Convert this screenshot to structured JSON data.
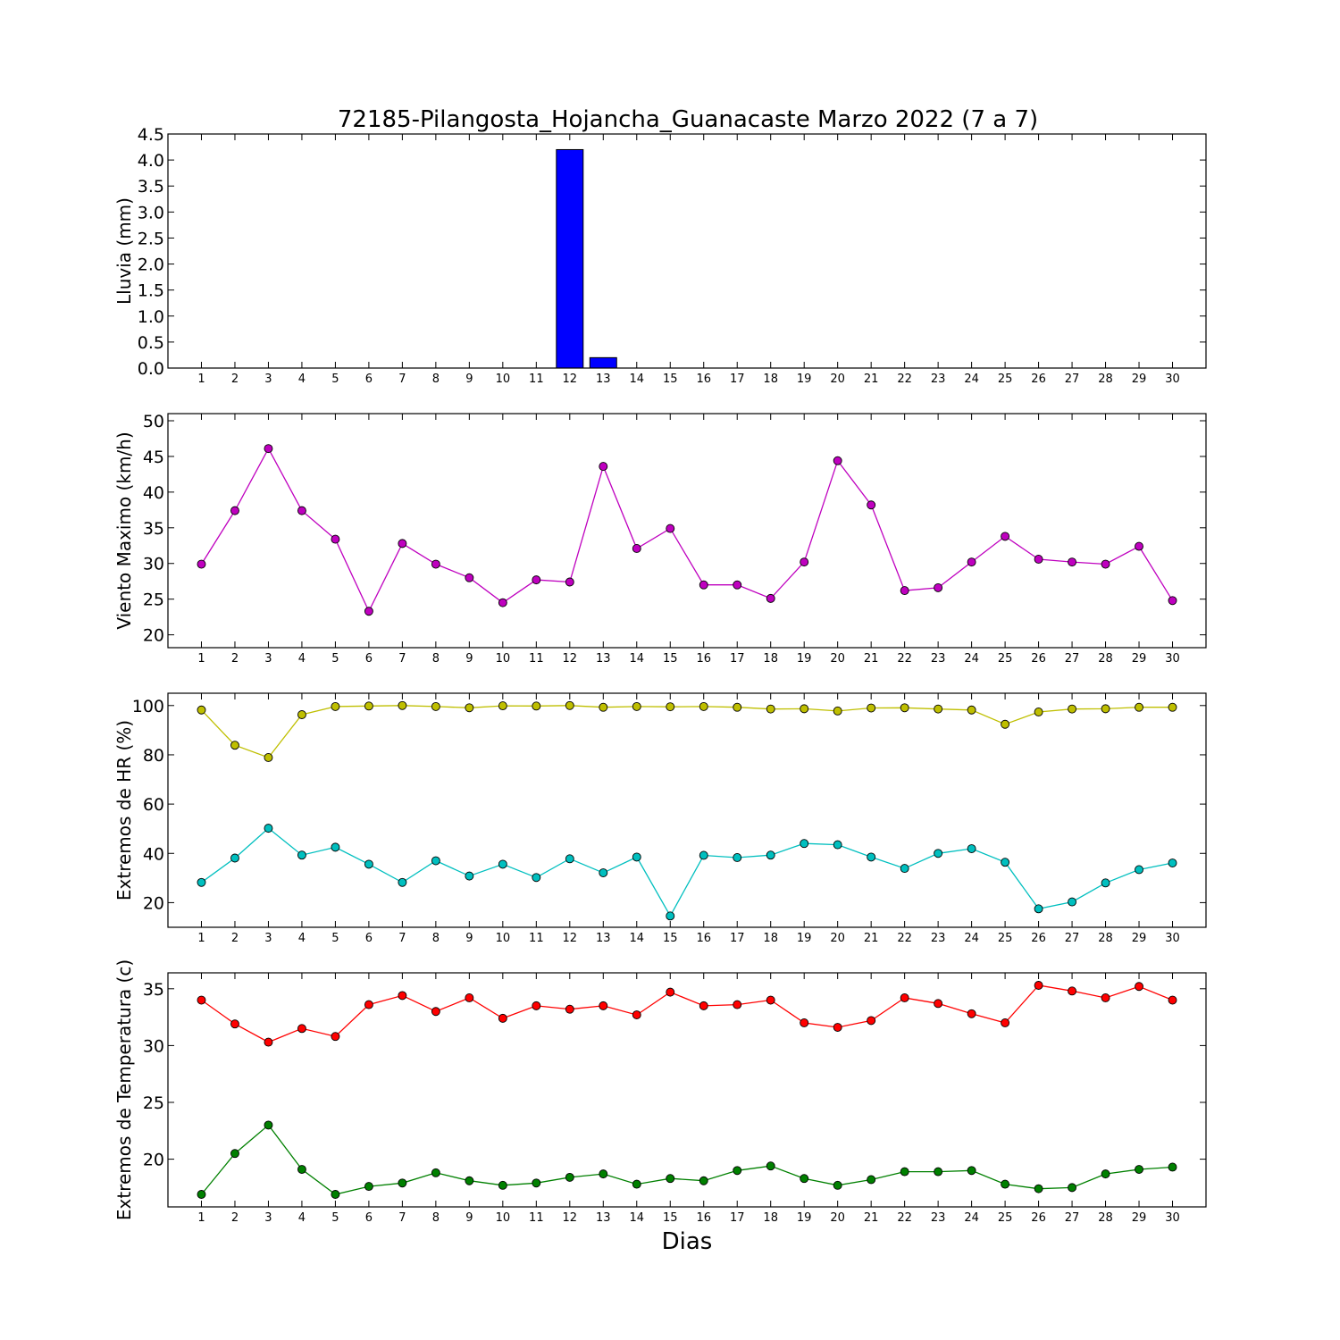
{
  "title": "72185-Pilangosta_Hojancha_Guanacaste Marzo 2022  (7 a 7)",
  "xlabel": "Dias",
  "colors": {
    "rain": "#0000ff",
    "wind": "#bf00bf",
    "hr_max": "#bfbf00",
    "hr_min": "#00bfbf",
    "temp_max": "#ff0000",
    "temp_min": "#008000"
  },
  "chart_data": [
    {
      "type": "bar",
      "ylabel": "Lluvia (mm)",
      "ylim": [
        0,
        4.5
      ],
      "yticks": [
        "0.0",
        "0.5",
        "1.0",
        "1.5",
        "2.0",
        "2.5",
        "3.0",
        "3.5",
        "4.0",
        "4.5"
      ],
      "categories": [
        1,
        2,
        3,
        4,
        5,
        6,
        7,
        8,
        9,
        10,
        11,
        12,
        13,
        14,
        15,
        16,
        17,
        18,
        19,
        20,
        21,
        22,
        23,
        24,
        25,
        26,
        27,
        28,
        29,
        30
      ],
      "series": [
        {
          "values": [
            0,
            0,
            0,
            0,
            0,
            0,
            0,
            0,
            0,
            0,
            0,
            4.2,
            0.2,
            0,
            0,
            0,
            0,
            0,
            0,
            0,
            0,
            0,
            0,
            0,
            0,
            0,
            0,
            0,
            0,
            0
          ]
        }
      ]
    },
    {
      "type": "line",
      "ylabel": "Viento Maximo (km/h)",
      "ylim": [
        18.2,
        51
      ],
      "yticks": [
        "20",
        "25",
        "30",
        "35",
        "40",
        "45",
        "50"
      ],
      "categories": [
        1,
        2,
        3,
        4,
        5,
        6,
        7,
        8,
        9,
        10,
        11,
        12,
        13,
        14,
        15,
        16,
        17,
        18,
        19,
        20,
        21,
        22,
        23,
        24,
        25,
        26,
        27,
        28,
        29,
        30
      ],
      "series": [
        {
          "values": [
            29.9,
            37.4,
            46.1,
            37.4,
            33.4,
            23.3,
            32.8,
            29.9,
            28.0,
            24.5,
            27.7,
            27.4,
            43.6,
            32.1,
            34.9,
            27.0,
            27.0,
            25.1,
            30.2,
            44.4,
            38.2,
            26.2,
            26.6,
            30.2,
            33.8,
            30.6,
            30.2,
            29.9,
            32.4,
            24.8
          ]
        }
      ]
    },
    {
      "type": "line",
      "ylabel": "Extremos de HR (%)",
      "ylim": [
        10,
        105
      ],
      "yticks": [
        "20",
        "40",
        "60",
        "80",
        "100"
      ],
      "categories": [
        1,
        2,
        3,
        4,
        5,
        6,
        7,
        8,
        9,
        10,
        11,
        12,
        13,
        14,
        15,
        16,
        17,
        18,
        19,
        20,
        21,
        22,
        23,
        24,
        25,
        26,
        27,
        28,
        29,
        30
      ],
      "series": [
        {
          "values": [
            98.2,
            83.9,
            78.9,
            96.3,
            99.6,
            99.8,
            100.0,
            99.6,
            99.1,
            99.9,
            99.8,
            100.0,
            99.3,
            99.6,
            99.5,
            99.6,
            99.3,
            98.6,
            98.7,
            97.8,
            99.0,
            99.1,
            98.6,
            98.2,
            92.4,
            97.4,
            98.6,
            98.7,
            99.3,
            99.3
          ]
        },
        {
          "values": [
            28.2,
            38.1,
            50.2,
            39.3,
            42.5,
            35.6,
            28.2,
            37.0,
            30.8,
            35.6,
            30.2,
            37.8,
            32.1,
            38.5,
            14.6,
            39.2,
            38.3,
            39.3,
            44.0,
            43.5,
            38.5,
            33.9,
            40.0,
            41.9,
            36.4,
            17.5,
            20.3,
            28.0,
            33.4,
            36.1
          ]
        }
      ]
    },
    {
      "type": "line",
      "ylabel": "Extremos de Temperatura (c)",
      "ylim": [
        15.8,
        36.4
      ],
      "yticks": [
        "20",
        "25",
        "30",
        "35"
      ],
      "categories": [
        1,
        2,
        3,
        4,
        5,
        6,
        7,
        8,
        9,
        10,
        11,
        12,
        13,
        14,
        15,
        16,
        17,
        18,
        19,
        20,
        21,
        22,
        23,
        24,
        25,
        26,
        27,
        28,
        29,
        30
      ],
      "series": [
        {
          "values": [
            34.0,
            31.9,
            30.3,
            31.5,
            30.8,
            33.6,
            34.4,
            33.0,
            34.2,
            32.4,
            33.5,
            33.2,
            33.5,
            32.7,
            34.7,
            33.5,
            33.6,
            34.0,
            32.0,
            31.6,
            32.2,
            34.2,
            33.7,
            32.8,
            32.0,
            35.3,
            34.8,
            34.2,
            35.2,
            34.0
          ]
        },
        {
          "values": [
            16.9,
            20.5,
            23.0,
            19.1,
            16.9,
            17.6,
            17.9,
            18.8,
            18.1,
            17.7,
            17.9,
            18.4,
            18.7,
            17.8,
            18.3,
            18.1,
            19.0,
            19.4,
            18.3,
            17.7,
            18.2,
            18.9,
            18.9,
            19.0,
            17.8,
            17.4,
            17.5,
            18.7,
            19.1,
            19.3
          ]
        }
      ]
    }
  ]
}
